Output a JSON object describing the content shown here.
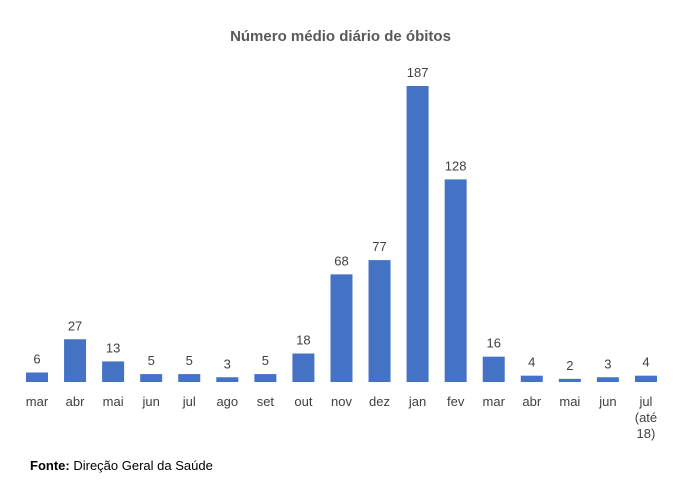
{
  "chart_data": {
    "type": "bar",
    "title": "Número médio diário de óbitos",
    "categories": [
      "mar",
      "abr",
      "mai",
      "jun",
      "jul",
      "ago",
      "set",
      "out",
      "nov",
      "dez",
      "jan",
      "fev",
      "mar",
      "abr",
      "mai",
      "jun",
      "jul (até 18)"
    ],
    "category_lines": [
      [
        "mar"
      ],
      [
        "abr"
      ],
      [
        "mai"
      ],
      [
        "jun"
      ],
      [
        "jul"
      ],
      [
        "ago"
      ],
      [
        "set"
      ],
      [
        "out"
      ],
      [
        "nov"
      ],
      [
        "dez"
      ],
      [
        "jan"
      ],
      [
        "fev"
      ],
      [
        "mar"
      ],
      [
        "abr"
      ],
      [
        "mai"
      ],
      [
        "jun"
      ],
      [
        "jul",
        "(até",
        "18)"
      ]
    ],
    "values": [
      6,
      27,
      13,
      5,
      5,
      3,
      5,
      18,
      68,
      77,
      187,
      128,
      16,
      4,
      2,
      3,
      4
    ],
    "data_labels": true,
    "grid": false,
    "ylim": [
      0,
      187
    ],
    "bar_color": "#4472C4"
  },
  "source": {
    "label": "Fonte:",
    "text": "Direção Geral da Saúde"
  }
}
